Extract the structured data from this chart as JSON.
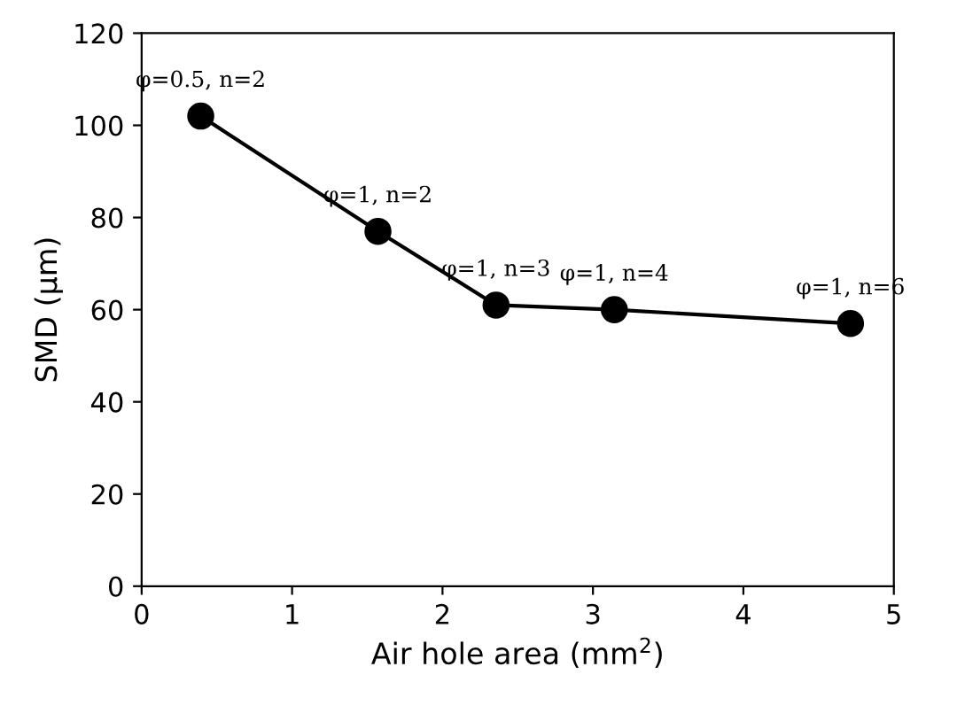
{
  "chart_data": {
    "type": "line",
    "xlabel": "Air hole area (mm$^{2}$)",
    "ylabel": "SMD (μm)",
    "x": [
      0.393,
      1.571,
      2.356,
      3.142,
      4.712
    ],
    "series": [
      {
        "color": "#000000",
        "values": [
          102,
          77,
          61,
          60,
          57
        ]
      }
    ],
    "xlim": [
      0,
      5
    ],
    "ylim": [
      0,
      120
    ],
    "xticks": [
      0,
      1,
      2,
      3,
      4,
      5
    ],
    "yticks": [
      0,
      20,
      40,
      60,
      80,
      100,
      120
    ],
    "grid": false,
    "legend": false,
    "marker": "circle",
    "line_style": "solid",
    "annotations": [
      {
        "text": "φ=0.5, n=2",
        "x": 0.393,
        "y": 102
      },
      {
        "text": "φ=1, n=2",
        "x": 1.571,
        "y": 77
      },
      {
        "text": "φ=1, n=3",
        "x": 2.356,
        "y": 61
      },
      {
        "text": "φ=1, n=4",
        "x": 3.142,
        "y": 60
      },
      {
        "text": "φ=1, n=6",
        "x": 4.712,
        "y": 57
      }
    ]
  }
}
